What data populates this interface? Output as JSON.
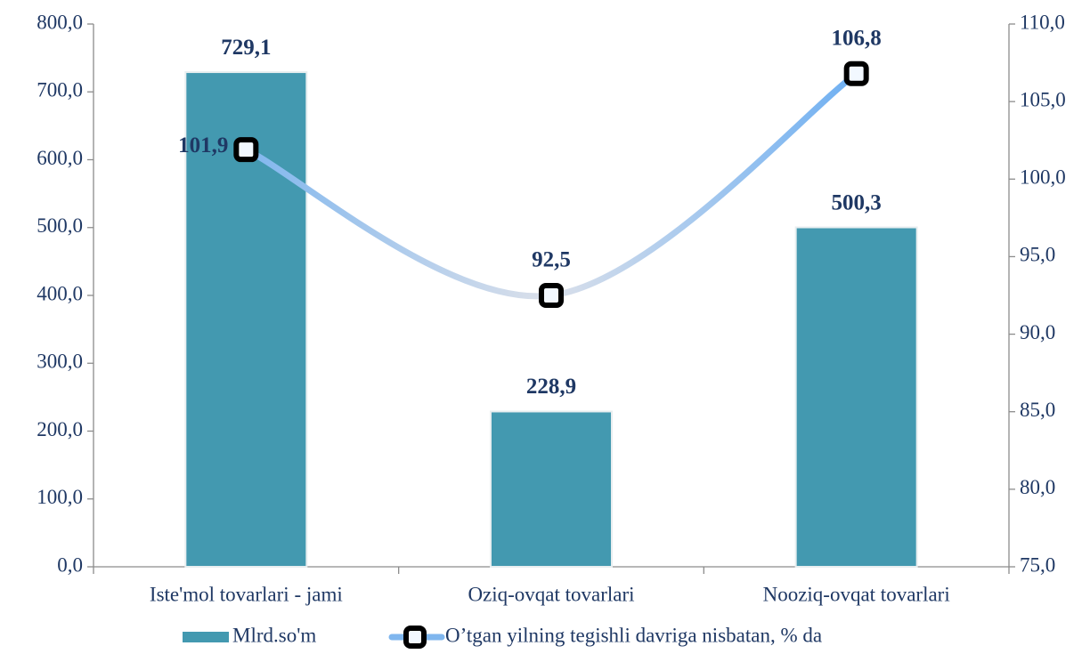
{
  "chart_data": {
    "type": "bar_line",
    "categories": [
      "Iste'mol tovarlari - jami",
      "Oziq-ovqat tovarlari",
      "Nooziq-ovqat tovarlari"
    ],
    "series": [
      {
        "name": "Mlrd.so'm",
        "color": "#4399b0",
        "type": "bar",
        "values": [
          729.1,
          228.9,
          500.3
        ],
        "value_labels": [
          "729,1",
          "228,9",
          "500,3"
        ]
      },
      {
        "name": "O’tgan yilning tegishli davriga nisbatan, % da",
        "color": "#7fb6ee",
        "type": "line",
        "axis": "y2",
        "values": [
          101.9,
          92.5,
          106.8
        ],
        "value_labels": [
          "101,9",
          "92,5",
          "106,8"
        ]
      }
    ],
    "ylim": [
      0,
      800
    ],
    "yticks": [
      {
        "value": 0,
        "label": "0,0"
      },
      {
        "value": 100,
        "label": "100,0"
      },
      {
        "value": 200,
        "label": "200,0"
      },
      {
        "value": 300,
        "label": "300,0"
      },
      {
        "value": 400,
        "label": "400,0"
      },
      {
        "value": 500,
        "label": "500,0"
      },
      {
        "value": 600,
        "label": "600,0"
      },
      {
        "value": 700,
        "label": "700,0"
      },
      {
        "value": 800,
        "label": "800,0"
      }
    ],
    "y2lim": [
      75,
      110
    ],
    "y2ticks": [
      {
        "value": 75,
        "label": "75,0"
      },
      {
        "value": 80,
        "label": "80,0"
      },
      {
        "value": 85,
        "label": "85,0"
      },
      {
        "value": 90,
        "label": "90,0"
      },
      {
        "value": 95,
        "label": "95,0"
      },
      {
        "value": 100,
        "label": "100,0"
      },
      {
        "value": 105,
        "label": "105,0"
      },
      {
        "value": 110,
        "label": "110,0"
      }
    ],
    "legend": "bottom"
  }
}
